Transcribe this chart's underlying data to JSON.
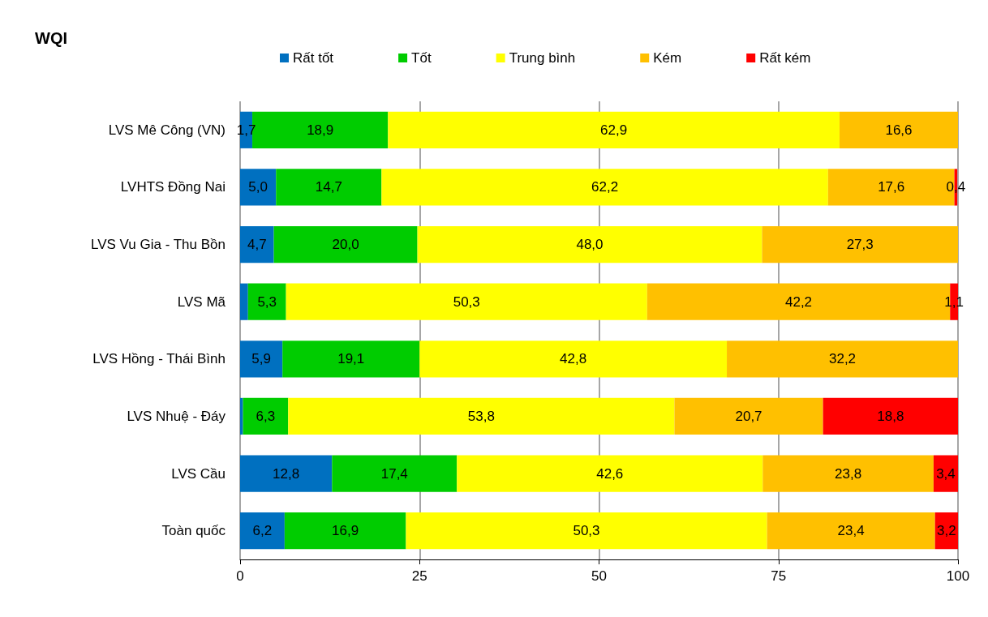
{
  "chart_data": {
    "type": "bar",
    "title": "WQI",
    "orientation": "horizontal",
    "stacked": true,
    "categories": [
      "LVS Mê Công (VN)",
      "LVHTS Đồng Nai",
      "LVS Vu Gia - Thu Bồn",
      "LVS Mã",
      "LVS Hồng - Thái Bình",
      "LVS Nhuệ - Đáy",
      "LVS Cầu",
      "Toàn quốc"
    ],
    "series": [
      {
        "name": "Rất tốt",
        "color": "#0070c0",
        "values": [
          1.7,
          5.0,
          4.7,
          1.1,
          5.9,
          0.4,
          12.8,
          6.2
        ],
        "value_labels": [
          "1,7",
          "5,0",
          "4,7",
          null,
          "5,9",
          null,
          "12,8",
          "6,2"
        ]
      },
      {
        "name": "Tốt",
        "color": "#00cc00",
        "values": [
          18.9,
          14.7,
          20.0,
          5.3,
          19.1,
          6.3,
          17.4,
          16.9
        ],
        "value_labels": [
          "18,9",
          "14,7",
          "20,0",
          "5,3",
          "19,1",
          "6,3",
          "17,4",
          "16,9"
        ]
      },
      {
        "name": "Trung bình",
        "color": "#ffff00",
        "values": [
          62.9,
          62.2,
          48.0,
          50.3,
          42.8,
          53.8,
          42.6,
          50.3
        ],
        "value_labels": [
          "62,9",
          "62,2",
          "48,0",
          "50,3",
          "42,8",
          "53,8",
          "42,6",
          "50,3"
        ]
      },
      {
        "name": "Kém",
        "color": "#ffc000",
        "values": [
          16.6,
          17.6,
          27.3,
          42.2,
          32.2,
          20.7,
          23.8,
          23.4
        ],
        "value_labels": [
          "16,6",
          "17,6",
          "27,3",
          "42,2",
          "32,2",
          "20,7",
          "23,8",
          "23,4"
        ]
      },
      {
        "name": "Rất kém",
        "color": "#ff0000",
        "values": [
          null,
          0.4,
          null,
          1.1,
          null,
          18.8,
          3.4,
          3.2
        ],
        "value_labels": [
          null,
          "0,4",
          null,
          "1,1",
          null,
          "18,8",
          "3,4",
          "3,2"
        ]
      }
    ],
    "xlim": [
      0,
      100
    ],
    "xticks": [
      0,
      25,
      50,
      75,
      100
    ],
    "grid": "x",
    "legend": "top"
  }
}
